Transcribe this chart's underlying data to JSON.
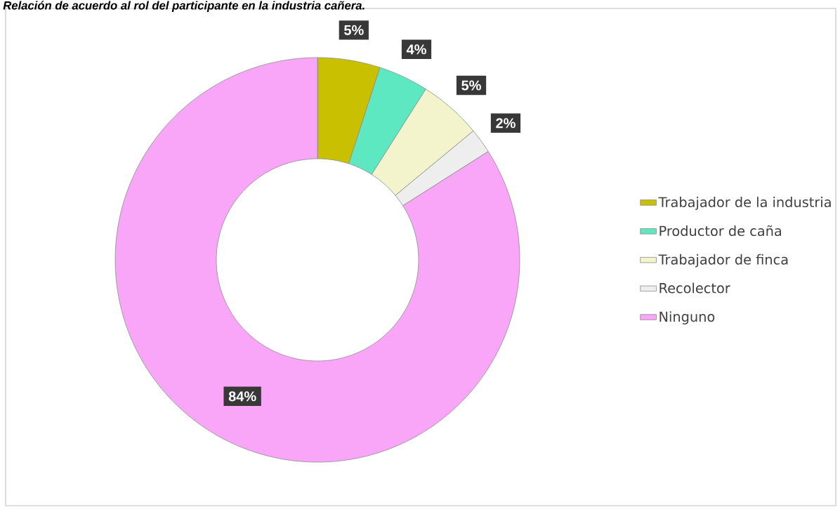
{
  "chart_data": {
    "type": "donut",
    "title": "Relación de acuerdo al rol del participante en la industria cañera.",
    "categories": [
      "Trabajador de la industria",
      "Productor de caña",
      "Trabajador de finca",
      "Recolector",
      "Ninguno"
    ],
    "values": [
      5,
      4,
      5,
      2,
      84
    ],
    "colors": [
      "#c8c000",
      "#5ee8c2",
      "#f4f4cc",
      "#eeeeee",
      "#f9a6f9"
    ],
    "data_labels": true,
    "value_labels": [
      "5%",
      "4%",
      "5%",
      "2%",
      "84%"
    ],
    "legend": "right"
  }
}
